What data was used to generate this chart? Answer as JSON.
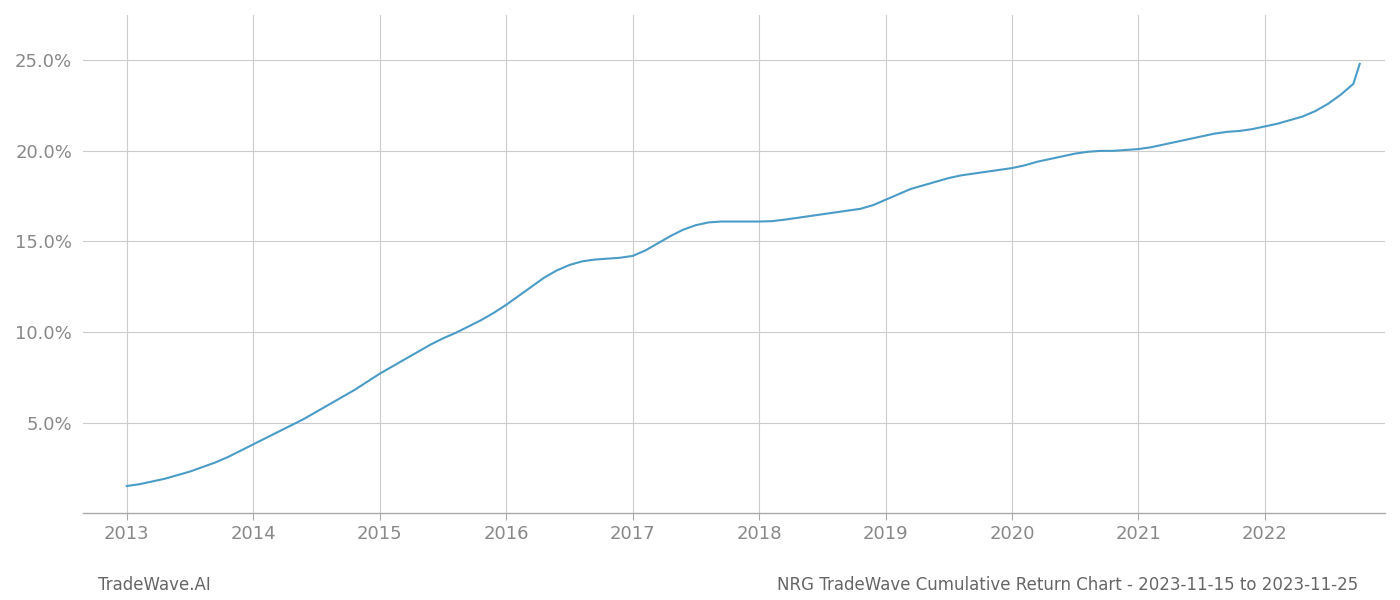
{
  "x_years": [
    2013.0,
    2013.1,
    2013.2,
    2013.3,
    2013.4,
    2013.5,
    2013.6,
    2013.7,
    2013.8,
    2013.9,
    2014.0,
    2014.1,
    2014.2,
    2014.3,
    2014.4,
    2014.5,
    2014.6,
    2014.7,
    2014.8,
    2014.9,
    2015.0,
    2015.1,
    2015.2,
    2015.3,
    2015.4,
    2015.5,
    2015.6,
    2015.7,
    2015.8,
    2015.9,
    2016.0,
    2016.1,
    2016.2,
    2016.3,
    2016.4,
    2016.5,
    2016.6,
    2016.7,
    2016.8,
    2016.9,
    2017.0,
    2017.1,
    2017.2,
    2017.3,
    2017.4,
    2017.5,
    2017.6,
    2017.7,
    2017.8,
    2017.9,
    2018.0,
    2018.1,
    2018.2,
    2018.3,
    2018.4,
    2018.5,
    2018.6,
    2018.7,
    2018.8,
    2018.9,
    2019.0,
    2019.1,
    2019.2,
    2019.3,
    2019.4,
    2019.5,
    2019.6,
    2019.7,
    2019.8,
    2019.9,
    2020.0,
    2020.1,
    2020.2,
    2020.3,
    2020.4,
    2020.5,
    2020.6,
    2020.7,
    2020.8,
    2020.9,
    2021.0,
    2021.1,
    2021.2,
    2021.3,
    2021.4,
    2021.5,
    2021.6,
    2021.7,
    2021.8,
    2021.9,
    2022.0,
    2022.1,
    2022.2,
    2022.3,
    2022.4,
    2022.5,
    2022.6,
    2022.7,
    2022.75
  ],
  "y_values": [
    1.5,
    1.6,
    1.75,
    1.9,
    2.1,
    2.3,
    2.55,
    2.8,
    3.1,
    3.45,
    3.8,
    4.15,
    4.5,
    4.85,
    5.2,
    5.6,
    6.0,
    6.4,
    6.8,
    7.25,
    7.7,
    8.1,
    8.5,
    8.9,
    9.3,
    9.65,
    9.95,
    10.3,
    10.65,
    11.05,
    11.5,
    12.0,
    12.5,
    13.0,
    13.4,
    13.7,
    13.9,
    14.0,
    14.05,
    14.1,
    14.2,
    14.5,
    14.9,
    15.3,
    15.65,
    15.9,
    16.05,
    16.1,
    16.1,
    16.1,
    16.1,
    16.12,
    16.2,
    16.3,
    16.4,
    16.5,
    16.6,
    16.7,
    16.8,
    17.0,
    17.3,
    17.6,
    17.9,
    18.1,
    18.3,
    18.5,
    18.65,
    18.75,
    18.85,
    18.95,
    19.05,
    19.2,
    19.4,
    19.55,
    19.7,
    19.85,
    19.95,
    20.0,
    20.0,
    20.05,
    20.1,
    20.2,
    20.35,
    20.5,
    20.65,
    20.8,
    20.95,
    21.05,
    21.1,
    21.2,
    21.35,
    21.5,
    21.7,
    21.9,
    22.2,
    22.6,
    23.1,
    23.7,
    24.8
  ],
  "line_color": "#4a9cc7",
  "line_width": 1.5,
  "background_color": "#ffffff",
  "grid_color": "#cccccc",
  "yticks": [
    5.0,
    10.0,
    15.0,
    20.0,
    25.0
  ],
  "xticks": [
    2013,
    2014,
    2015,
    2016,
    2017,
    2018,
    2019,
    2020,
    2021,
    2022
  ],
  "xlim": [
    2012.65,
    2022.95
  ],
  "ylim": [
    0.0,
    27.5
  ],
  "xlabel_color": "#888888",
  "ylabel_color": "#888888",
  "tick_fontsize": 13,
  "footer_left": "TradeWave.AI",
  "footer_right": "NRG TradeWave Cumulative Return Chart - 2023-11-15 to 2023-11-25",
  "footer_color": "#666666",
  "footer_fontsize": 12
}
